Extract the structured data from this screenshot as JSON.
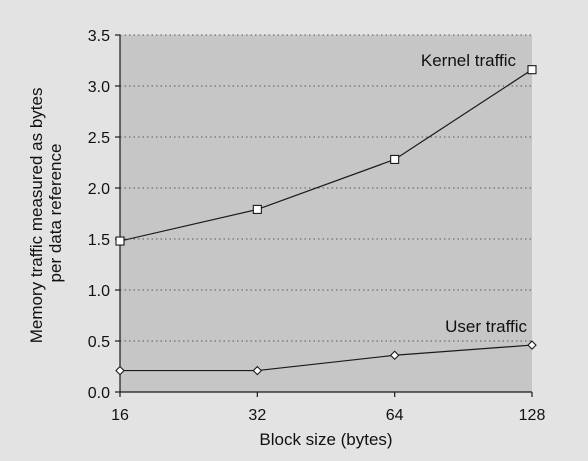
{
  "chart_data": {
    "type": "line",
    "title": "",
    "xlabel": "Block size (bytes)",
    "ylabel": [
      "Memory traffic measured as bytes",
      "per data reference"
    ],
    "x_scale": "log2",
    "categories": [
      "16",
      "32",
      "64",
      "128"
    ],
    "x": [
      16,
      32,
      64,
      128
    ],
    "ylim": [
      0,
      3.5
    ],
    "yticks": [
      "0.0",
      "0.5",
      "1.0",
      "1.5",
      "2.0",
      "2.5",
      "3.0",
      "3.5"
    ],
    "grid": "horizontal dotted",
    "series": [
      {
        "name": "Kernel traffic",
        "marker": "square",
        "values": [
          1.48,
          1.79,
          2.28,
          3.16
        ]
      },
      {
        "name": "User traffic",
        "marker": "diamond",
        "values": [
          0.21,
          0.21,
          0.36,
          0.46
        ]
      }
    ],
    "colors": {
      "page": "#e3e3e3",
      "plot": "#c6c6c6",
      "line": "#1a1a1a",
      "grid": "#5a5a5a"
    }
  }
}
